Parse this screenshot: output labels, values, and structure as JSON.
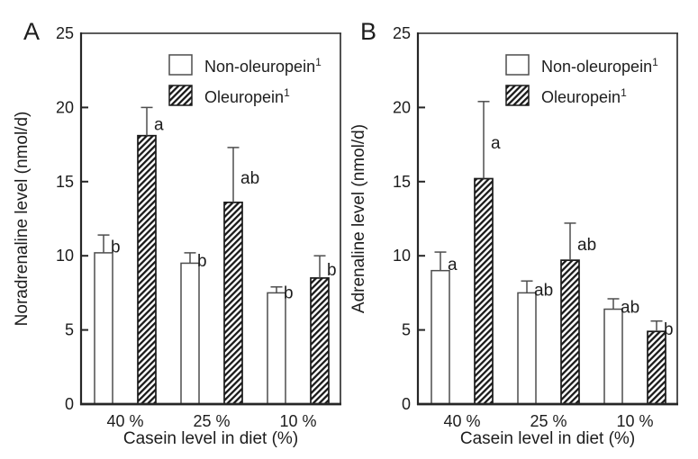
{
  "figure_type": "two-panel grouped bar chart with error bars",
  "colors": {
    "ink": "#1d1d1d",
    "frame": "#262626",
    "error_bar": "#4d4d4d",
    "bar_fill": "#ffffff",
    "hatch": "#1a1a1a",
    "background": "#ffffff"
  },
  "chart_data": [
    {
      "panel_letter": "A",
      "type": "bar",
      "title": "",
      "ylabel": "Noradrenaline level (nmol/d)",
      "xlabel": "Casein level in diet (%)",
      "ylim": [
        0,
        25
      ],
      "yticks": [
        0,
        5,
        10,
        15,
        20,
        25
      ],
      "ytick_labels": [
        "0",
        "5",
        "10",
        "15",
        "20",
        "25"
      ],
      "grid": false,
      "legend_position": "top-right-inside",
      "categories": [
        "40 %",
        "25 %",
        "10 %"
      ],
      "legend": [
        {
          "label": "Non-oleuropein",
          "superscript": "1",
          "swatch": "open"
        },
        {
          "label": "Oleuropein",
          "superscript": "1",
          "swatch": "hatched"
        }
      ],
      "series": [
        {
          "name": "Non-oleuropein",
          "pattern": "open",
          "values": [
            10.2,
            9.5,
            7.5
          ],
          "errors_plus": [
            1.2,
            0.7,
            0.4
          ],
          "sig_letters": [
            "b",
            "b",
            "b"
          ]
        },
        {
          "name": "Oleuropein",
          "pattern": "hatched",
          "values": [
            18.1,
            13.6,
            8.5
          ],
          "errors_plus": [
            1.9,
            3.7,
            1.5
          ],
          "sig_letters": [
            "a",
            "ab",
            "b"
          ]
        }
      ]
    },
    {
      "panel_letter": "B",
      "type": "bar",
      "title": "",
      "ylabel": "Adrenaline level (nmol/d)",
      "xlabel": "Casein level in diet (%)",
      "ylim": [
        0,
        25
      ],
      "yticks": [
        0,
        5,
        10,
        15,
        20,
        25
      ],
      "ytick_labels": [
        "0",
        "5",
        "10",
        "15",
        "20",
        "25"
      ],
      "grid": false,
      "legend_position": "top-right-inside",
      "categories": [
        "40 %",
        "25 %",
        "10 %"
      ],
      "legend": [
        {
          "label": "Non-oleuropein",
          "superscript": "1",
          "swatch": "open"
        },
        {
          "label": "Oleuropein",
          "superscript": "1",
          "swatch": "hatched"
        }
      ],
      "series": [
        {
          "name": "Non-oleuropein",
          "pattern": "open",
          "values": [
            9.0,
            7.5,
            6.4
          ],
          "errors_plus": [
            1.25,
            0.8,
            0.7
          ],
          "sig_letters": [
            "a",
            "ab",
            "ab"
          ]
        },
        {
          "name": "Oleuropein",
          "pattern": "hatched",
          "values": [
            15.2,
            9.7,
            4.9
          ],
          "errors_plus": [
            5.2,
            2.5,
            0.7
          ],
          "sig_letters": [
            "a",
            "ab",
            "b"
          ]
        }
      ]
    }
  ]
}
